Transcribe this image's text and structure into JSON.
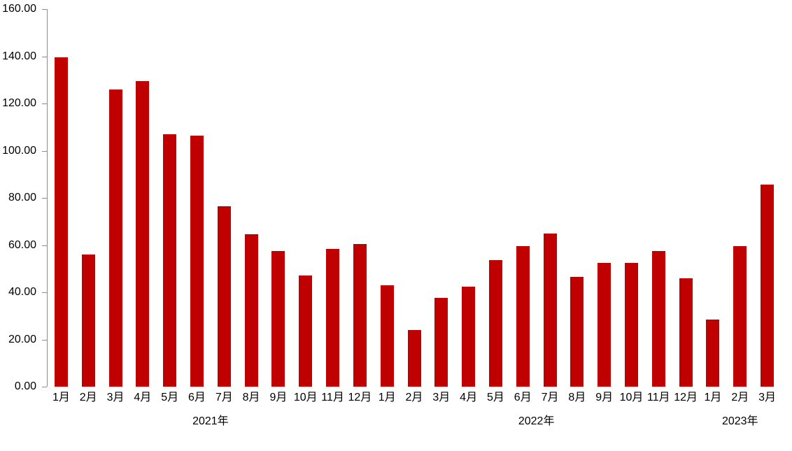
{
  "chart_data": {
    "type": "bar",
    "title": "",
    "xlabel": "",
    "ylabel": "",
    "ylim": [
      0,
      160
    ],
    "y_tick_step": 20,
    "y_ticks": [
      {
        "value": 0,
        "label": "0.00"
      },
      {
        "value": 20,
        "label": "20.00"
      },
      {
        "value": 40,
        "label": "40.00"
      },
      {
        "value": 60,
        "label": "60.00"
      },
      {
        "value": 80,
        "label": "80.00"
      },
      {
        "value": 100,
        "label": "100.00"
      },
      {
        "value": 120,
        "label": "120.00"
      },
      {
        "value": 140,
        "label": "140.00"
      },
      {
        "value": 160,
        "label": "160.00"
      }
    ],
    "grid": false,
    "legend": false,
    "bar_color": "#C00000",
    "axis_color": "#8c8c8c",
    "text_color": "#000000",
    "categories": [
      "1月",
      "2月",
      "3月",
      "4月",
      "5月",
      "6月",
      "7月",
      "8月",
      "9月",
      "10月",
      "11月",
      "12月",
      "1月",
      "2月",
      "3月",
      "4月",
      "5月",
      "6月",
      "7月",
      "8月",
      "9月",
      "10月",
      "11月",
      "12月",
      "1月",
      "2月",
      "3月"
    ],
    "values": [
      139.5,
      56.0,
      126.0,
      129.5,
      107.0,
      106.5,
      76.5,
      64.5,
      57.5,
      47.0,
      58.5,
      60.5,
      43.0,
      24.0,
      37.5,
      42.5,
      53.5,
      59.5,
      65.0,
      46.5,
      52.5,
      52.5,
      57.5,
      46.0,
      28.5,
      59.5,
      85.5
    ],
    "year_groups": [
      {
        "label": "2021年",
        "start_index": 0,
        "end_index": 11
      },
      {
        "label": "2022年",
        "start_index": 12,
        "end_index": 23
      },
      {
        "label": "2023年",
        "start_index": 24,
        "end_index": 26
      }
    ]
  }
}
